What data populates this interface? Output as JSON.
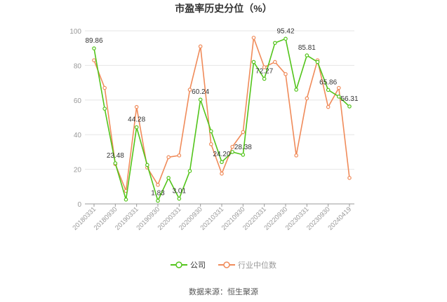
{
  "chart_data": {
    "type": "line",
    "title": "市盈率历史分位（%）",
    "source": "数据来源：恒生聚源",
    "ylim": [
      0,
      100
    ],
    "y_ticks": [
      "0",
      "20",
      "40",
      "60",
      "80",
      "100"
    ],
    "grid": "horizontal",
    "legend_position": "bottom",
    "x_tick_labels": [
      "20180331",
      "20180930",
      "20190331",
      "20190930",
      "20200331",
      "20200930",
      "20210331",
      "20210930",
      "20220331",
      "20220930",
      "20230331",
      "20230930",
      "20240419"
    ],
    "x_tick_positions": [
      0,
      2,
      4,
      6,
      8,
      10,
      12,
      14,
      16,
      18,
      20,
      22,
      24
    ],
    "series": [
      {
        "name": "公司",
        "color": "#52c41a",
        "values": [
          89.86,
          55.0,
          23.48,
          2.5,
          44.28,
          22.5,
          1.83,
          15.0,
          3.01,
          19.0,
          60.24,
          42.0,
          24.2,
          30.0,
          28.38,
          82.0,
          72.27,
          93.0,
          95.42,
          66.0,
          85.81,
          82.0,
          65.86,
          62.0,
          56.31
        ],
        "labels": {
          "0": "89.86",
          "2": "23.48",
          "4": "44.28",
          "6": "1.83",
          "8": "3.01",
          "10": "60.24",
          "12": "24.20",
          "14": "28.38",
          "16": "72.27",
          "18": "95.42",
          "20": "85.81",
          "22": "65.86",
          "24": "56.31"
        }
      },
      {
        "name": "行业中位数",
        "color": "#f08b5a",
        "values": [
          83.0,
          67.0,
          23.0,
          7.5,
          56.0,
          21.0,
          11.0,
          27.0,
          28.0,
          66.0,
          91.0,
          34.5,
          17.5,
          33.0,
          41.5,
          96.0,
          79.0,
          82.0,
          75.0,
          28.0,
          61.0,
          83.0,
          56.0,
          67.0,
          15.0
        ]
      }
    ]
  }
}
